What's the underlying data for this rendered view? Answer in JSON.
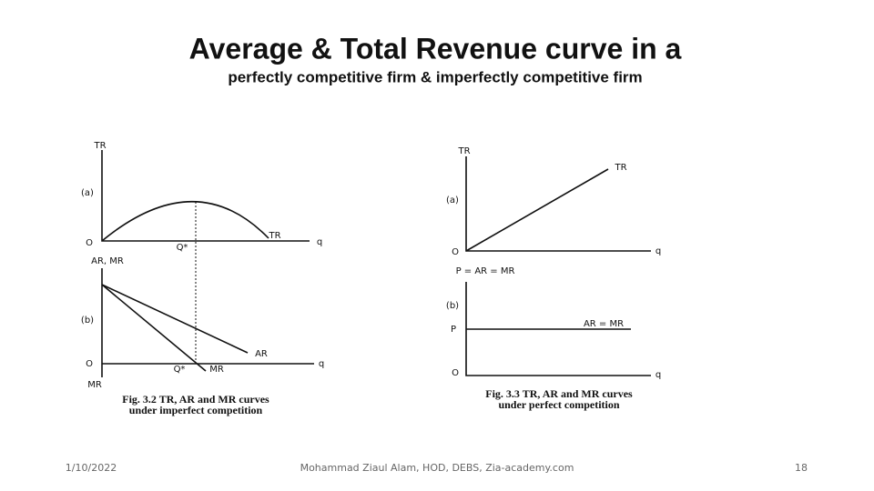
{
  "header": {
    "title": "Average & Total Revenue curve in a",
    "subtitle": "perfectly competitive firm & imperfectly competitive firm"
  },
  "figures": [
    {
      "labels": [
        "TR",
        "(a)",
        "O",
        "Q*",
        "TR",
        "q",
        "AR, MR",
        "(b)",
        "O",
        "Q*",
        "MR",
        "AR",
        "q",
        "MR"
      ],
      "caption": [
        "Fig. 3.2  TR, AR and MR curves",
        "under imperfect competition"
      ]
    },
    {
      "labels": [
        "TR",
        "TR",
        "(a)",
        "O",
        "q",
        "P = AR = MR",
        "(b)",
        "P",
        "AR = MR",
        "O",
        "q"
      ],
      "caption": [
        "Fig. 3.3  TR, AR and MR curves",
        "under perfect competition"
      ]
    }
  ],
  "footer": {
    "date": "1/10/2022",
    "author": "Mohammad Ziaul Alam, HOD, DEBS, Zia-academy.com",
    "page": "18"
  }
}
